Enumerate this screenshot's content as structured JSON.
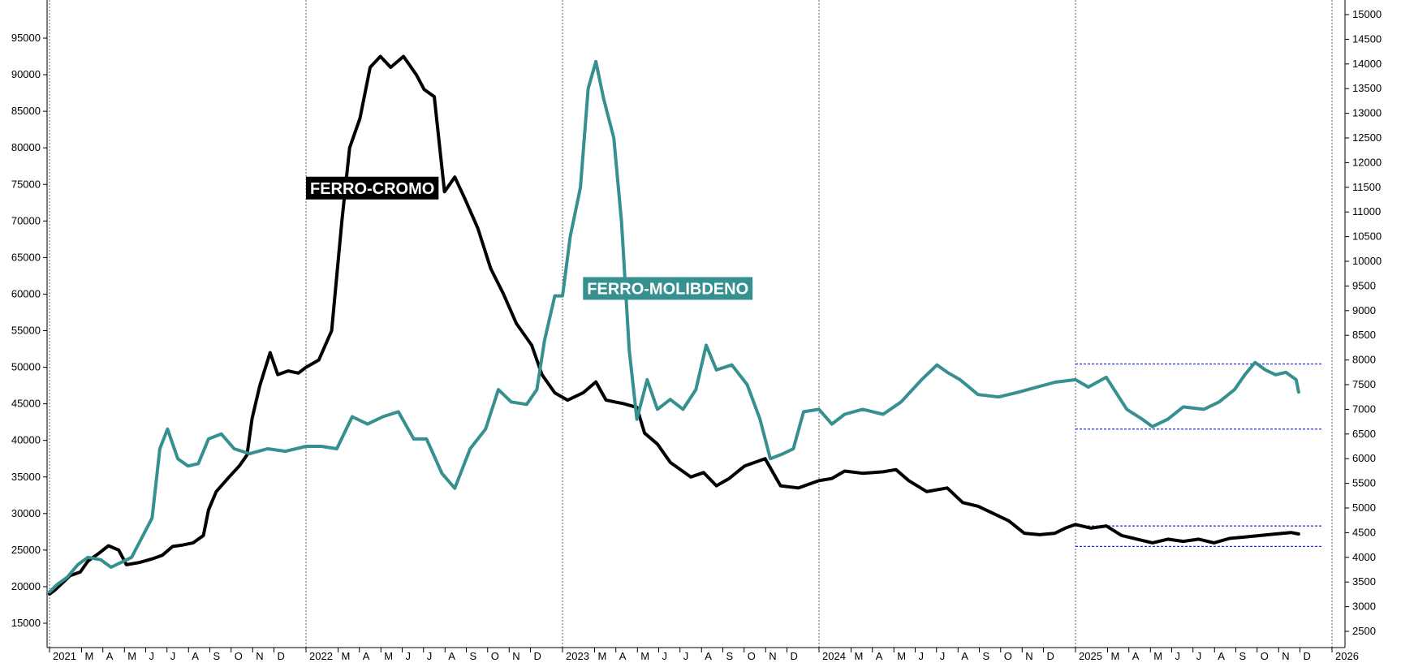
{
  "chart_data": {
    "type": "line",
    "title": "",
    "xlabel": "",
    "ylabel": "",
    "x_range": [
      "2021-01",
      "2026-01"
    ],
    "ylim_left": [
      12000,
      100000
    ],
    "ylim_right": [
      2000,
      15500
    ],
    "grid": "vertical dotted lines at year starts",
    "x_ticks": [
      {
        "label": "2021",
        "x": 2021.0,
        "year": true
      },
      {
        "label": "M",
        "x": 2021.125
      },
      {
        "label": "A",
        "x": 2021.208
      },
      {
        "label": "M",
        "x": 2021.292
      },
      {
        "label": "J",
        "x": 2021.375
      },
      {
        "label": "J",
        "x": 2021.458
      },
      {
        "label": "A",
        "x": 2021.542
      },
      {
        "label": "S",
        "x": 2021.625
      },
      {
        "label": "O",
        "x": 2021.708
      },
      {
        "label": "N",
        "x": 2021.792
      },
      {
        "label": "D",
        "x": 2021.875
      },
      {
        "label": "2022",
        "x": 2022.0,
        "year": true
      },
      {
        "label": "M",
        "x": 2022.125
      },
      {
        "label": "A",
        "x": 2022.208
      },
      {
        "label": "M",
        "x": 2022.292
      },
      {
        "label": "J",
        "x": 2022.375
      },
      {
        "label": "J",
        "x": 2022.458
      },
      {
        "label": "A",
        "x": 2022.542
      },
      {
        "label": "S",
        "x": 2022.625
      },
      {
        "label": "O",
        "x": 2022.708
      },
      {
        "label": "N",
        "x": 2022.792
      },
      {
        "label": "D",
        "x": 2022.875
      },
      {
        "label": "2023",
        "x": 2023.0,
        "year": true
      },
      {
        "label": "M",
        "x": 2023.125
      },
      {
        "label": "A",
        "x": 2023.208
      },
      {
        "label": "M",
        "x": 2023.292
      },
      {
        "label": "J",
        "x": 2023.375
      },
      {
        "label": "J",
        "x": 2023.458
      },
      {
        "label": "A",
        "x": 2023.542
      },
      {
        "label": "S",
        "x": 2023.625
      },
      {
        "label": "O",
        "x": 2023.708
      },
      {
        "label": "N",
        "x": 2023.792
      },
      {
        "label": "D",
        "x": 2023.875
      },
      {
        "label": "2024",
        "x": 2024.0,
        "year": true
      },
      {
        "label": "M",
        "x": 2024.125
      },
      {
        "label": "A",
        "x": 2024.208
      },
      {
        "label": "M",
        "x": 2024.292
      },
      {
        "label": "J",
        "x": 2024.375
      },
      {
        "label": "J",
        "x": 2024.458
      },
      {
        "label": "A",
        "x": 2024.542
      },
      {
        "label": "S",
        "x": 2024.625
      },
      {
        "label": "O",
        "x": 2024.708
      },
      {
        "label": "N",
        "x": 2024.792
      },
      {
        "label": "D",
        "x": 2024.875
      },
      {
        "label": "2025",
        "x": 2025.0,
        "year": true
      },
      {
        "label": "M",
        "x": 2025.125
      },
      {
        "label": "A",
        "x": 2025.208
      },
      {
        "label": "M",
        "x": 2025.292
      },
      {
        "label": "J",
        "x": 2025.375
      },
      {
        "label": "J",
        "x": 2025.458
      },
      {
        "label": "A",
        "x": 2025.542
      },
      {
        "label": "S",
        "x": 2025.625
      },
      {
        "label": "O",
        "x": 2025.708
      },
      {
        "label": "N",
        "x": 2025.792
      },
      {
        "label": "D",
        "x": 2025.875
      },
      {
        "label": "2026",
        "x": 2026.0,
        "year": true
      }
    ],
    "y_ticks_left": [
      15000,
      20000,
      25000,
      30000,
      35000,
      40000,
      45000,
      50000,
      55000,
      60000,
      65000,
      70000,
      75000,
      80000,
      85000,
      90000,
      95000
    ],
    "y_ticks_right": [
      2500,
      3000,
      3500,
      4000,
      4500,
      5000,
      5500,
      6000,
      6500,
      7000,
      7500,
      8000,
      8500,
      9000,
      9500,
      10000,
      10500,
      11000,
      11500,
      12000,
      12500,
      13000,
      13500,
      14000,
      14500,
      15000
    ],
    "series": [
      {
        "name": "FERRO-CROMO",
        "axis": "left",
        "color": "#000000",
        "label_position": {
          "x": 2022.0,
          "y": 74500
        },
        "points": [
          [
            2021.0,
            19000
          ],
          [
            2021.02,
            19500
          ],
          [
            2021.05,
            20500
          ],
          [
            2021.08,
            21500
          ],
          [
            2021.12,
            22000
          ],
          [
            2021.15,
            23500
          ],
          [
            2021.19,
            24500
          ],
          [
            2021.23,
            25600
          ],
          [
            2021.27,
            25000
          ],
          [
            2021.3,
            23000
          ],
          [
            2021.35,
            23300
          ],
          [
            2021.4,
            23800
          ],
          [
            2021.44,
            24300
          ],
          [
            2021.48,
            25500
          ],
          [
            2021.52,
            25700
          ],
          [
            2021.56,
            26000
          ],
          [
            2021.6,
            27000
          ],
          [
            2021.62,
            30500
          ],
          [
            2021.65,
            33000
          ],
          [
            2021.7,
            35000
          ],
          [
            2021.74,
            36500
          ],
          [
            2021.77,
            38000
          ],
          [
            2021.79,
            43000
          ],
          [
            2021.82,
            47500
          ],
          [
            2021.86,
            52000
          ],
          [
            2021.89,
            49000
          ],
          [
            2021.93,
            49500
          ],
          [
            2021.97,
            49200
          ],
          [
            2022.0,
            50000
          ],
          [
            2022.05,
            51000
          ],
          [
            2022.1,
            55000
          ],
          [
            2022.14,
            70000
          ],
          [
            2022.17,
            80000
          ],
          [
            2022.21,
            84000
          ],
          [
            2022.25,
            91000
          ],
          [
            2022.29,
            92500
          ],
          [
            2022.33,
            91000
          ],
          [
            2022.38,
            92500
          ],
          [
            2022.43,
            90000
          ],
          [
            2022.46,
            88000
          ],
          [
            2022.5,
            87000
          ],
          [
            2022.54,
            74000
          ],
          [
            2022.58,
            76000
          ],
          [
            2022.62,
            73000
          ],
          [
            2022.67,
            69000
          ],
          [
            2022.72,
            63500
          ],
          [
            2022.77,
            60000
          ],
          [
            2022.82,
            56000
          ],
          [
            2022.88,
            53000
          ],
          [
            2022.92,
            49000
          ],
          [
            2022.97,
            46500
          ],
          [
            2023.02,
            45500
          ],
          [
            2023.08,
            46500
          ],
          [
            2023.13,
            48000
          ],
          [
            2023.17,
            45500
          ],
          [
            2023.24,
            45000
          ],
          [
            2023.29,
            44500
          ],
          [
            2023.32,
            41000
          ],
          [
            2023.37,
            39500
          ],
          [
            2023.42,
            37000
          ],
          [
            2023.5,
            35000
          ],
          [
            2023.55,
            35600
          ],
          [
            2023.6,
            33800
          ],
          [
            2023.65,
            34800
          ],
          [
            2023.71,
            36500
          ],
          [
            2023.79,
            37500
          ],
          [
            2023.85,
            33800
          ],
          [
            2023.92,
            33500
          ],
          [
            2024.0,
            34500
          ],
          [
            2024.05,
            34800
          ],
          [
            2024.1,
            35800
          ],
          [
            2024.17,
            35500
          ],
          [
            2024.25,
            35700
          ],
          [
            2024.3,
            36000
          ],
          [
            2024.35,
            34500
          ],
          [
            2024.42,
            33000
          ],
          [
            2024.5,
            33500
          ],
          [
            2024.56,
            31500
          ],
          [
            2024.62,
            31000
          ],
          [
            2024.68,
            30000
          ],
          [
            2024.74,
            29000
          ],
          [
            2024.8,
            27300
          ],
          [
            2024.86,
            27100
          ],
          [
            2024.92,
            27300
          ],
          [
            2024.96,
            28000
          ],
          [
            2025.0,
            28500
          ],
          [
            2025.06,
            28000
          ],
          [
            2025.12,
            28300
          ],
          [
            2025.18,
            27000
          ],
          [
            2025.24,
            26500
          ],
          [
            2025.3,
            26000
          ],
          [
            2025.36,
            26500
          ],
          [
            2025.42,
            26200
          ],
          [
            2025.48,
            26500
          ],
          [
            2025.54,
            26000
          ],
          [
            2025.6,
            26600
          ],
          [
            2025.66,
            26800
          ],
          [
            2025.72,
            27000
          ],
          [
            2025.78,
            27200
          ],
          [
            2025.84,
            27400
          ],
          [
            2025.87,
            27200
          ]
        ]
      },
      {
        "name": "FERRO-MOLIBDENO",
        "axis": "right",
        "color": "#35908F",
        "label_position": {
          "x": 2023.08,
          "y": 9450
        },
        "points": [
          [
            2021.0,
            3300
          ],
          [
            2021.03,
            3450
          ],
          [
            2021.07,
            3600
          ],
          [
            2021.11,
            3850
          ],
          [
            2021.15,
            4000
          ],
          [
            2021.2,
            3950
          ],
          [
            2021.24,
            3800
          ],
          [
            2021.28,
            3900
          ],
          [
            2021.32,
            4000
          ],
          [
            2021.36,
            4400
          ],
          [
            2021.4,
            4800
          ],
          [
            2021.43,
            6200
          ],
          [
            2021.46,
            6600
          ],
          [
            2021.5,
            6000
          ],
          [
            2021.54,
            5850
          ],
          [
            2021.58,
            5900
          ],
          [
            2021.62,
            6400
          ],
          [
            2021.67,
            6500
          ],
          [
            2021.72,
            6200
          ],
          [
            2021.78,
            6100
          ],
          [
            2021.85,
            6200
          ],
          [
            2021.92,
            6150
          ],
          [
            2022.0,
            6250
          ],
          [
            2022.06,
            6250
          ],
          [
            2022.12,
            6200
          ],
          [
            2022.18,
            6850
          ],
          [
            2022.24,
            6700
          ],
          [
            2022.3,
            6850
          ],
          [
            2022.36,
            6950
          ],
          [
            2022.42,
            6400
          ],
          [
            2022.47,
            6400
          ],
          [
            2022.53,
            5700
          ],
          [
            2022.58,
            5400
          ],
          [
            2022.64,
            6200
          ],
          [
            2022.7,
            6600
          ],
          [
            2022.75,
            7400
          ],
          [
            2022.8,
            7150
          ],
          [
            2022.86,
            7100
          ],
          [
            2022.9,
            7400
          ],
          [
            2022.93,
            8400
          ],
          [
            2022.97,
            9300
          ],
          [
            2023.0,
            9300
          ],
          [
            2023.03,
            10500
          ],
          [
            2023.07,
            11500
          ],
          [
            2023.1,
            13500
          ],
          [
            2023.13,
            14050
          ],
          [
            2023.16,
            13300
          ],
          [
            2023.2,
            12500
          ],
          [
            2023.23,
            10800
          ],
          [
            2023.26,
            8200
          ],
          [
            2023.29,
            6800
          ],
          [
            2023.33,
            7600
          ],
          [
            2023.37,
            7000
          ],
          [
            2023.42,
            7200
          ],
          [
            2023.47,
            7000
          ],
          [
            2023.52,
            7400
          ],
          [
            2023.56,
            8300
          ],
          [
            2023.6,
            7800
          ],
          [
            2023.66,
            7900
          ],
          [
            2023.72,
            7500
          ],
          [
            2023.77,
            6800
          ],
          [
            2023.81,
            6000
          ],
          [
            2023.86,
            6100
          ],
          [
            2023.9,
            6200
          ],
          [
            2023.94,
            6950
          ],
          [
            2024.0,
            7000
          ],
          [
            2024.05,
            6700
          ],
          [
            2024.1,
            6900
          ],
          [
            2024.17,
            7000
          ],
          [
            2024.25,
            6900
          ],
          [
            2024.32,
            7150
          ],
          [
            2024.4,
            7600
          ],
          [
            2024.46,
            7900
          ],
          [
            2024.5,
            7750
          ],
          [
            2024.55,
            7600
          ],
          [
            2024.62,
            7300
          ],
          [
            2024.7,
            7250
          ],
          [
            2024.78,
            7350
          ],
          [
            2024.85,
            7450
          ],
          [
            2024.92,
            7550
          ],
          [
            2025.0,
            7600
          ],
          [
            2025.05,
            7450
          ],
          [
            2025.12,
            7650
          ],
          [
            2025.2,
            7000
          ],
          [
            2025.26,
            6800
          ],
          [
            2025.3,
            6650
          ],
          [
            2025.36,
            6800
          ],
          [
            2025.42,
            7050
          ],
          [
            2025.5,
            7000
          ],
          [
            2025.56,
            7150
          ],
          [
            2025.62,
            7400
          ],
          [
            2025.66,
            7700
          ],
          [
            2025.7,
            7950
          ],
          [
            2025.74,
            7800
          ],
          [
            2025.78,
            7700
          ],
          [
            2025.82,
            7750
          ],
          [
            2025.86,
            7600
          ],
          [
            2025.87,
            7350
          ]
        ]
      }
    ],
    "range_boxes": [
      {
        "axis": "right",
        "x_start": 2025.0,
        "x_end": 2025.96,
        "y_low": 6600,
        "y_high": 7920
      },
      {
        "axis": "left",
        "x_start": 2025.0,
        "x_end": 2025.96,
        "y_low": 25500,
        "y_high": 28300
      }
    ]
  }
}
